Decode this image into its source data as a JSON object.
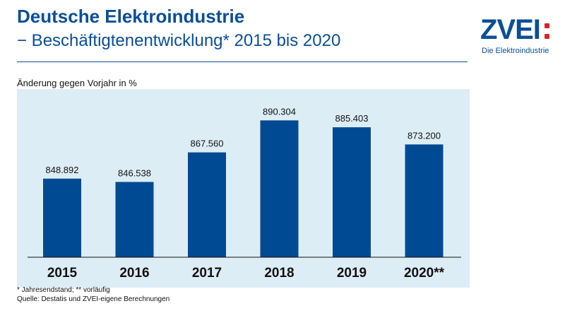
{
  "header": {
    "title": "Deutsche Elektroindustrie",
    "subtitle": "− Beschäftigtenentwicklung* 2015 bis 2020"
  },
  "logo": {
    "word": "ZVEI",
    "tagline": "Die Elektroindustrie",
    "accent_color": "#d8232a",
    "brand_color": "#0a4e96"
  },
  "chart_data": {
    "type": "bar",
    "title": "",
    "ylabel": "Änderung gegen Vorjahr in %",
    "xlabel": "",
    "categories": [
      "2015",
      "2016",
      "2017",
      "2018",
      "2019",
      "2020**"
    ],
    "values": [
      848892,
      846538,
      867560,
      890304,
      885403,
      873200
    ],
    "value_labels": [
      "848.892",
      "846.538",
      "867.560",
      "890.304",
      "885.403",
      "873.200"
    ],
    "ylim": [
      793000,
      893000
    ],
    "bar_color": "#004a93",
    "background_color": "#ddedf6",
    "grid": false,
    "legend": "none"
  },
  "footer": {
    "footnote": "* Jahresendstand; ** vorläufig",
    "source": "Quelle: Destatis und ZVEI-eigene Berechnungen"
  }
}
